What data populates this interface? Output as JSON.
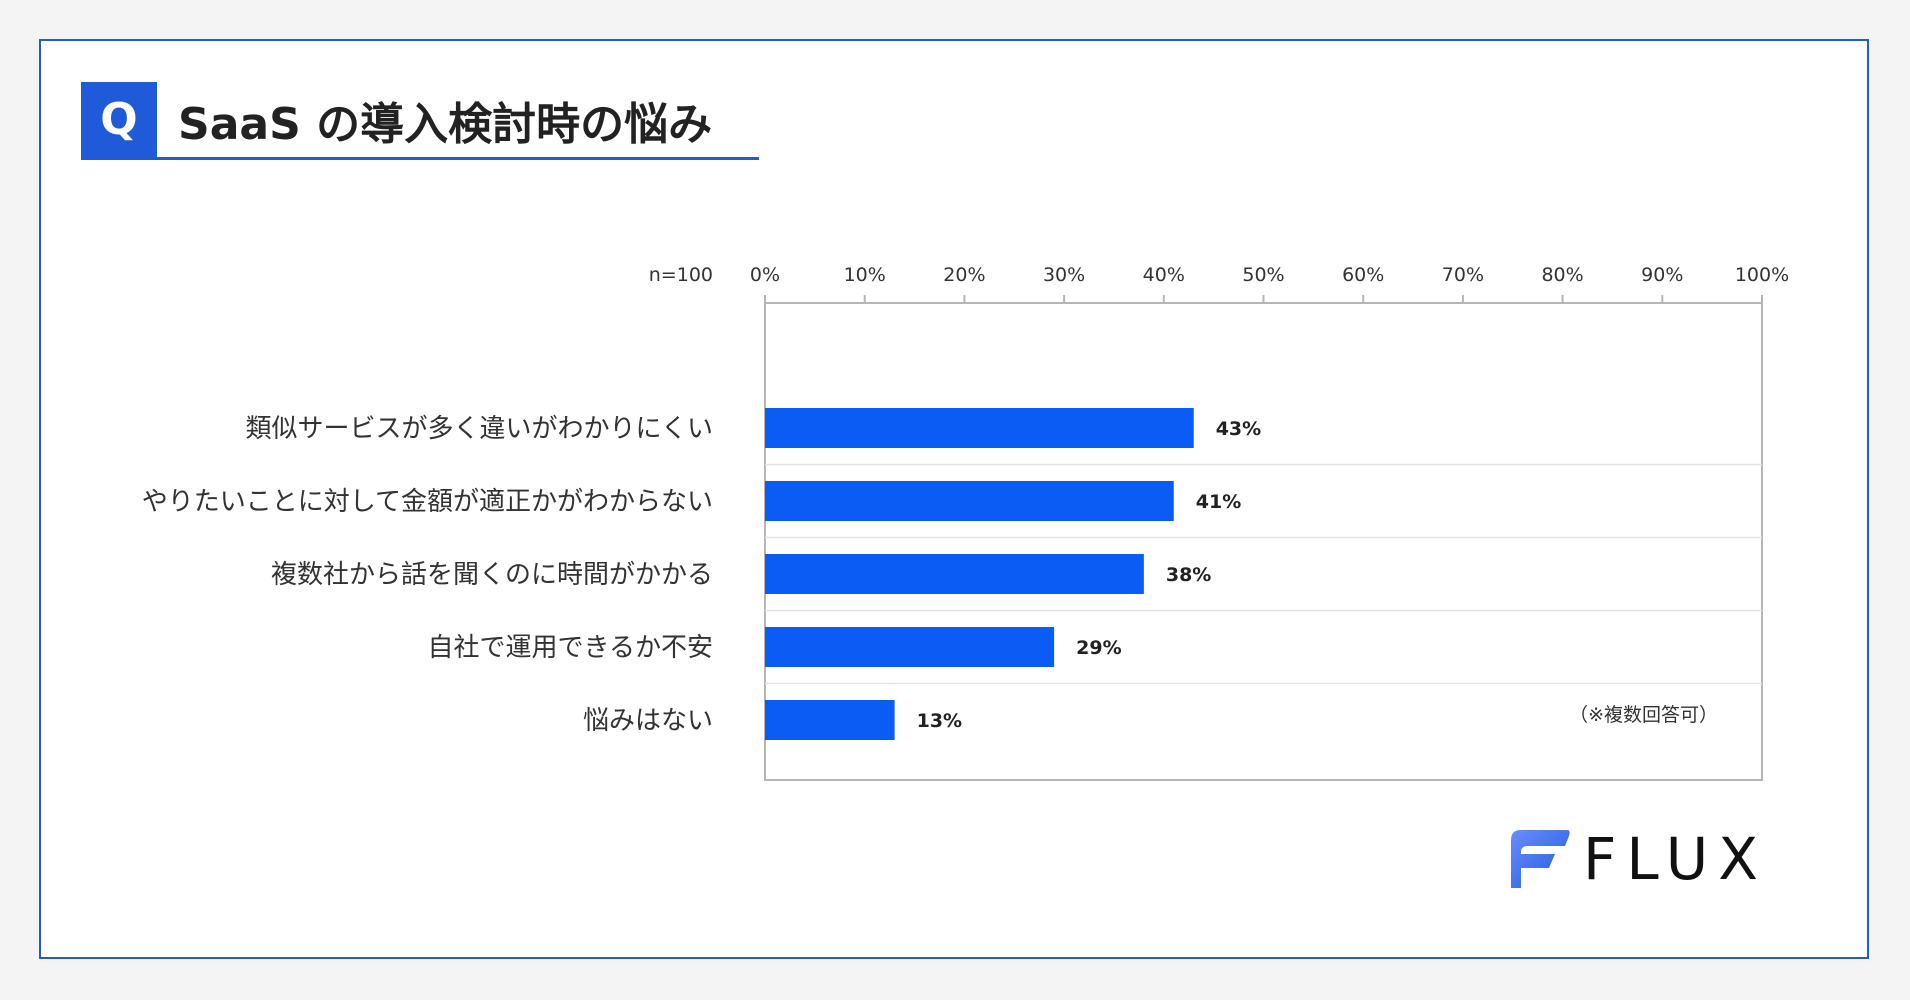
{
  "header": {
    "q_mark": "Q",
    "title": "SaaS の導入検討時の悩み"
  },
  "chart_data": {
    "type": "bar",
    "orientation": "horizontal",
    "sample_label": "n=100",
    "categories": [
      "類似サービスが多く違いがわかりにくい",
      "やりたいことに対して金額が適正かがわからない",
      "複数社から話を聞くのに時間がかかる",
      "自社で運用できるか不安",
      "悩みはない"
    ],
    "values": [
      43,
      41,
      38,
      29,
      13
    ],
    "value_labels": [
      "43%",
      "41%",
      "38%",
      "29%",
      "13%"
    ],
    "xlim": [
      0,
      100
    ],
    "ticks": [
      0,
      10,
      20,
      30,
      40,
      50,
      60,
      70,
      80,
      90,
      100
    ],
    "tick_labels": [
      "0%",
      "10%",
      "20%",
      "30%",
      "40%",
      "50%",
      "60%",
      "70%",
      "80%",
      "90%",
      "100%"
    ],
    "note": "（※複数回答可）",
    "bar_color": "#0a5cf5",
    "grid": false
  },
  "logo": {
    "text": "FLUX"
  },
  "colors": {
    "accent": "#1f5bd8",
    "bar": "#0a5cf5"
  }
}
